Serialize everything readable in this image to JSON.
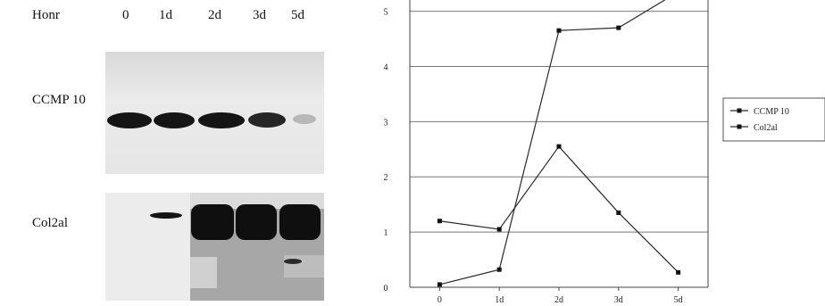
{
  "blot": {
    "header_label": "Honr",
    "lanes": [
      "0",
      "1d",
      "2d",
      "3d",
      "5d"
    ],
    "rows": [
      {
        "label": "CCMP 10"
      },
      {
        "label": "Col2al"
      }
    ]
  },
  "chart_data": {
    "type": "line",
    "categories": [
      "0",
      "1d",
      "2d",
      "3d",
      "5d"
    ],
    "y_ticks": [
      "0",
      "1",
      "2",
      "3",
      "4",
      "5"
    ],
    "ylim": [
      0,
      5.3
    ],
    "grid": true,
    "legend_position": "right",
    "series": [
      {
        "name": "CCMP 10",
        "values": [
          1.2,
          1.05,
          2.55,
          1.35,
          0.27
        ]
      },
      {
        "name": "Col2al",
        "values": [
          0.05,
          0.32,
          4.65,
          4.7,
          5.35
        ]
      }
    ]
  },
  "colors": {
    "line": "#2a2a2a",
    "grid": "#777777",
    "band": "#111111",
    "blot_bg_light": "#e3e3e3",
    "blot_bg_dark": "#a9a9a9"
  }
}
